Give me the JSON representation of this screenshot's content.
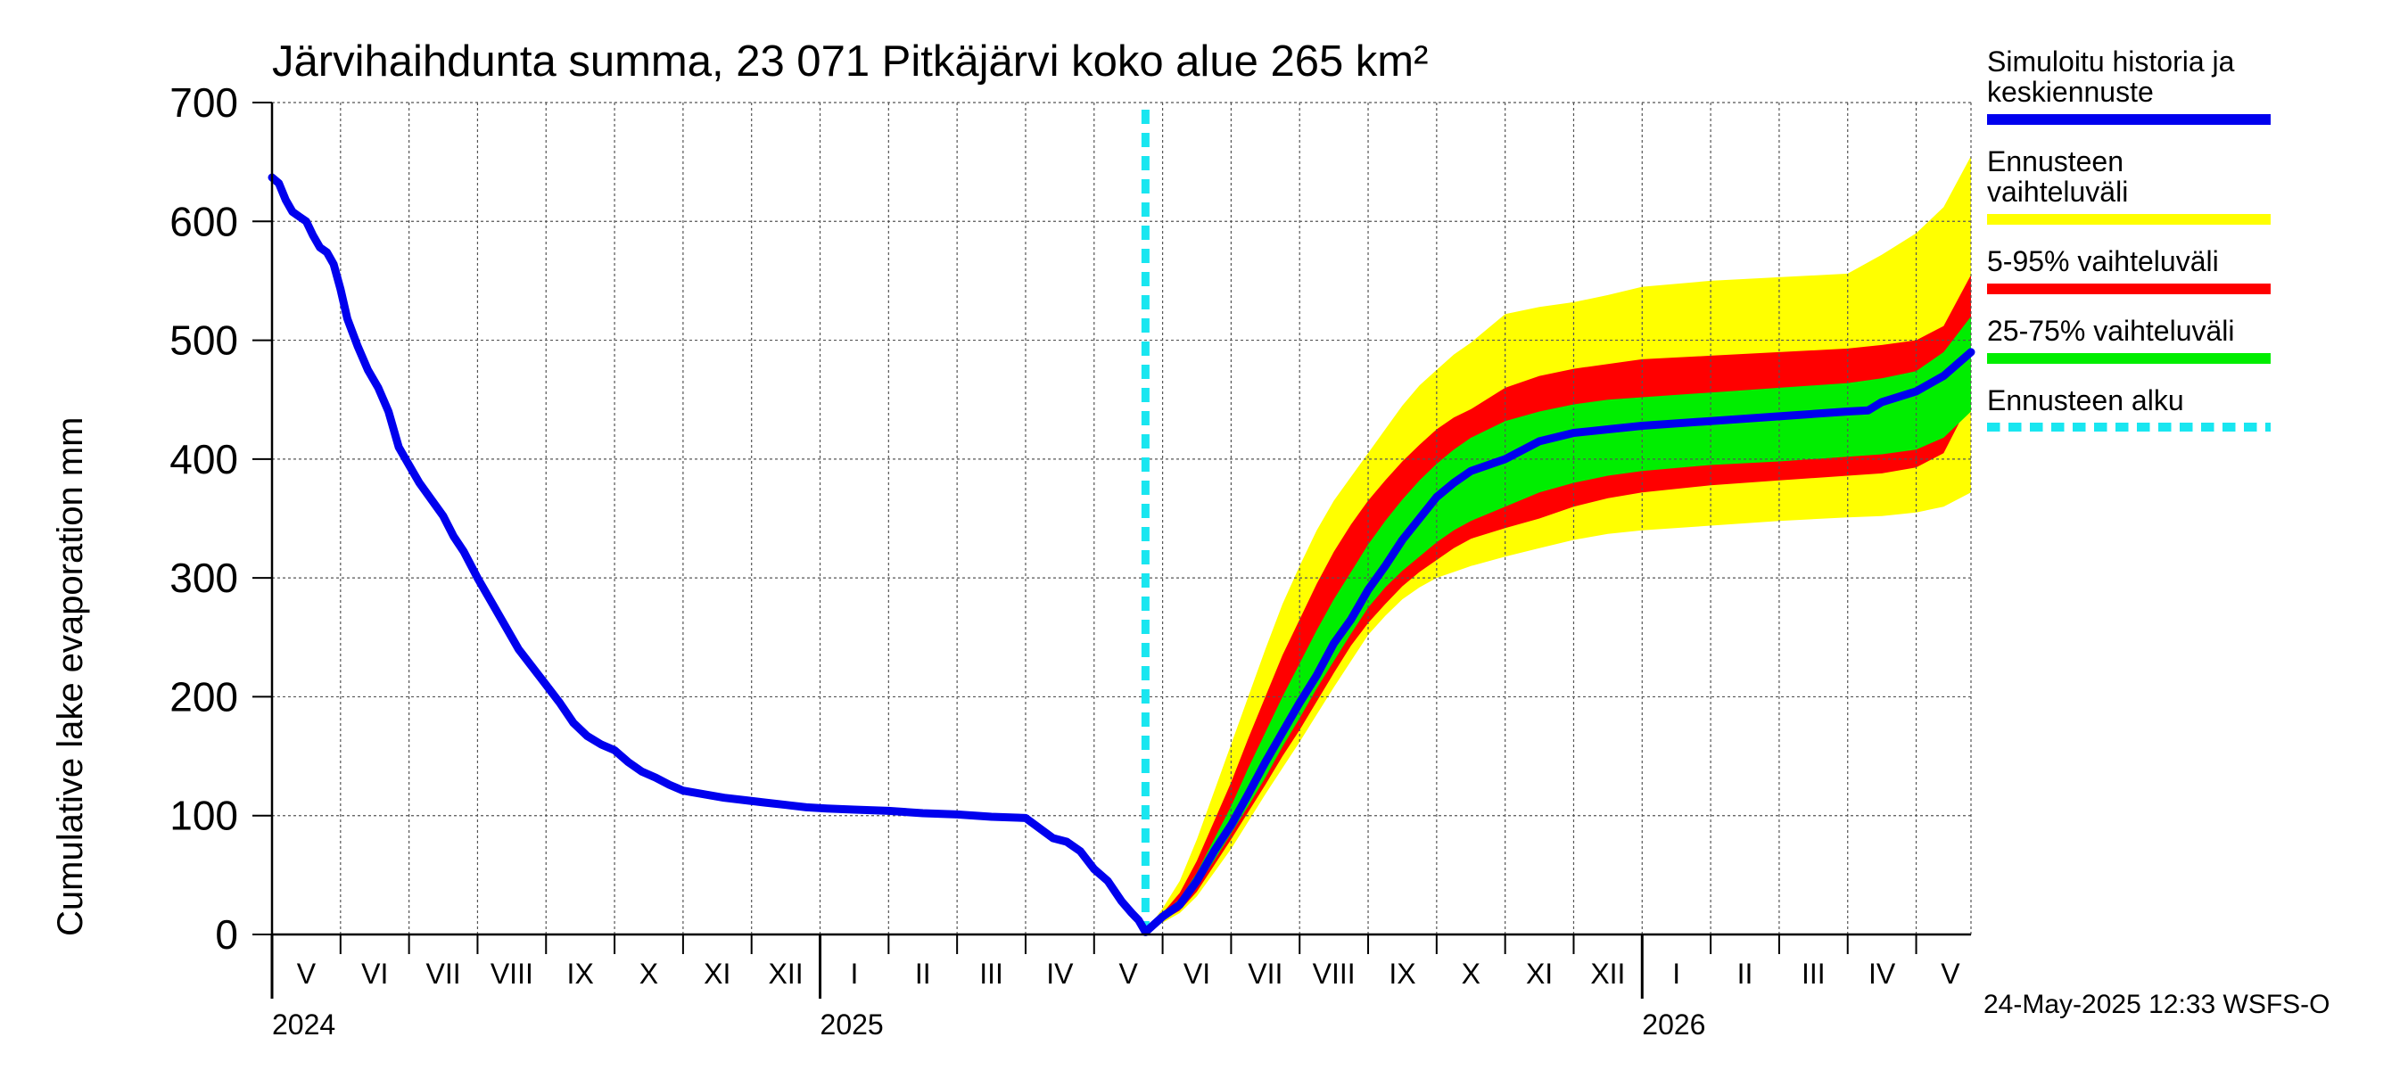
{
  "chart_data": {
    "type": "line",
    "title": "Järvihaihdunta summa, 23 071 Pitkäjärvi koko alue 265 km²",
    "ylabel": "Cumulative lake evaporation   mm",
    "xlabel": "",
    "ylim": [
      0,
      700
    ],
    "y_ticks": [
      0,
      100,
      200,
      300,
      400,
      500,
      600,
      700
    ],
    "grid": true,
    "x_unit": "months since 2024-05-01",
    "xlim": [
      0,
      24.8
    ],
    "month_labels": [
      "V",
      "VI",
      "VII",
      "VIII",
      "IX",
      "X",
      "XI",
      "XII",
      "I",
      "II",
      "III",
      "IV",
      "V",
      "VI",
      "VII",
      "VIII",
      "IX",
      "X",
      "XI",
      "XII",
      "I",
      "II",
      "III",
      "IV",
      "V"
    ],
    "year_labels": [
      {
        "label": "2024",
        "month_index": 0
      },
      {
        "label": "2025",
        "month_index": 8
      },
      {
        "label": "2026",
        "month_index": 20
      }
    ],
    "forecast_start": 12.75,
    "history": {
      "name": "Simuloitu historia ja keskiennuste",
      "x": [
        0.0,
        0.1,
        0.2,
        0.3,
        0.4,
        0.5,
        0.6,
        0.7,
        0.8,
        0.9,
        1.0,
        1.1,
        1.25,
        1.4,
        1.55,
        1.7,
        1.85,
        2.0,
        2.15,
        2.3,
        2.5,
        2.65,
        2.8,
        3.0,
        3.2,
        3.4,
        3.6,
        3.8,
        4.0,
        4.2,
        4.4,
        4.6,
        4.8,
        5.0,
        5.2,
        5.4,
        5.6,
        5.8,
        6.0,
        6.3,
        6.6,
        6.9,
        7.2,
        7.5,
        7.8,
        8.1,
        8.5,
        9.0,
        9.5,
        10.0,
        10.5,
        11.0,
        11.4,
        11.6,
        11.8,
        12.0,
        12.2,
        12.4,
        12.55,
        12.65,
        12.75
      ],
      "y": [
        637,
        632,
        618,
        608,
        604,
        600,
        588,
        578,
        574,
        564,
        543,
        518,
        495,
        475,
        460,
        440,
        410,
        395,
        380,
        368,
        352,
        335,
        322,
        300,
        280,
        260,
        240,
        225,
        210,
        195,
        178,
        167,
        160,
        155,
        145,
        137,
        132,
        126,
        121,
        118,
        115,
        113,
        111,
        109,
        107,
        106,
        105,
        104,
        102,
        101,
        99,
        98,
        81,
        78,
        70,
        55,
        45,
        28,
        18,
        12,
        2
      ]
    },
    "median_forecast": {
      "name": "Simuloitu historia ja keskiennuste",
      "x": [
        12.75,
        13.0,
        13.25,
        13.5,
        13.75,
        14.0,
        14.25,
        14.5,
        14.75,
        15.0,
        15.25,
        15.5,
        15.75,
        16.0,
        16.25,
        16.5,
        16.75,
        17.0,
        17.25,
        17.5,
        18.0,
        18.5,
        19.0,
        19.5,
        20.0,
        21.0,
        22.0,
        23.0,
        23.3,
        23.5,
        24.0,
        24.4,
        24.8
      ],
      "y": [
        2,
        15,
        25,
        45,
        70,
        92,
        118,
        145,
        170,
        195,
        218,
        245,
        265,
        290,
        310,
        332,
        350,
        368,
        380,
        390,
        400,
        415,
        422,
        425,
        428,
        432,
        436,
        440,
        441,
        448,
        457,
        470,
        490
      ]
    },
    "bands": [
      {
        "name": "Ennusteen vaihteluväli",
        "color": "#ffff00",
        "x": [
          12.75,
          13.0,
          13.25,
          13.5,
          13.75,
          14.0,
          14.25,
          14.5,
          14.75,
          15.0,
          15.25,
          15.5,
          15.75,
          16.0,
          16.25,
          16.5,
          16.75,
          17.0,
          17.25,
          17.5,
          18.0,
          18.5,
          19.0,
          19.5,
          20.0,
          21.0,
          22.0,
          23.0,
          23.5,
          24.0,
          24.4,
          24.8
        ],
        "upper": [
          2,
          22,
          45,
          80,
          120,
          160,
          200,
          240,
          278,
          310,
          340,
          365,
          385,
          405,
          425,
          445,
          462,
          475,
          488,
          498,
          522,
          528,
          532,
          538,
          545,
          550,
          553,
          556,
          572,
          590,
          612,
          655
        ],
        "lower": [
          2,
          10,
          18,
          32,
          52,
          72,
          95,
          118,
          140,
          162,
          185,
          208,
          230,
          252,
          268,
          282,
          292,
          300,
          305,
          310,
          318,
          325,
          332,
          337,
          340,
          344,
          348,
          351,
          352,
          355,
          360,
          372
        ]
      },
      {
        "name": "5-95% vaihteluväli",
        "color": "#ff0000",
        "x": [
          12.75,
          13.0,
          13.25,
          13.5,
          13.75,
          14.0,
          14.25,
          14.5,
          14.75,
          15.0,
          15.25,
          15.5,
          15.75,
          16.0,
          16.25,
          16.5,
          16.75,
          17.0,
          17.25,
          17.5,
          18.0,
          18.5,
          19.0,
          19.5,
          20.0,
          21.0,
          22.0,
          23.0,
          23.5,
          24.0,
          24.4,
          24.8
        ],
        "upper": [
          2,
          18,
          35,
          62,
          95,
          128,
          165,
          200,
          235,
          265,
          295,
          322,
          345,
          365,
          382,
          398,
          412,
          425,
          435,
          442,
          460,
          470,
          476,
          480,
          484,
          487,
          490,
          493,
          496,
          500,
          512,
          555
        ],
        "lower": [
          2,
          12,
          20,
          36,
          58,
          80,
          103,
          126,
          150,
          172,
          196,
          220,
          243,
          262,
          278,
          293,
          305,
          315,
          325,
          333,
          342,
          350,
          360,
          367,
          372,
          378,
          382,
          386,
          388,
          393,
          405,
          450
        ]
      },
      {
        "name": "25-75% vaihteluväli",
        "color": "#00ee00",
        "x": [
          12.75,
          13.0,
          13.25,
          13.5,
          13.75,
          14.0,
          14.25,
          14.5,
          14.75,
          15.0,
          15.25,
          15.5,
          15.75,
          16.0,
          16.25,
          16.5,
          16.75,
          17.0,
          17.25,
          17.5,
          18.0,
          18.5,
          19.0,
          19.5,
          20.0,
          21.0,
          22.0,
          23.0,
          23.5,
          24.0,
          24.4,
          24.8
        ],
        "upper": [
          2,
          17,
          30,
          52,
          80,
          108,
          140,
          170,
          200,
          228,
          256,
          282,
          305,
          328,
          348,
          366,
          382,
          396,
          408,
          418,
          432,
          440,
          446,
          450,
          452,
          456,
          460,
          464,
          468,
          474,
          490,
          520
        ],
        "lower": [
          2,
          13,
          22,
          40,
          62,
          85,
          108,
          132,
          158,
          182,
          207,
          230,
          253,
          275,
          292,
          306,
          318,
          330,
          340,
          348,
          360,
          372,
          380,
          386,
          390,
          395,
          398,
          402,
          404,
          408,
          418,
          440
        ]
      }
    ],
    "legend": [
      {
        "label": "Simuloitu historia ja keskiennuste",
        "color": "#0000ee",
        "style": "line"
      },
      {
        "label": "Ennusteen vaihteluväli",
        "color": "#ffff00",
        "style": "band"
      },
      {
        "label": "5-95% vaihteluväli",
        "color": "#ff0000",
        "style": "band"
      },
      {
        "label": "25-75% vaihteluväli",
        "color": "#00ee00",
        "style": "band"
      },
      {
        "label": "Ennusteen alku",
        "color": "#19e6f0",
        "style": "dashed"
      }
    ],
    "legend_position": "right"
  },
  "footer": {
    "timestamp": "24-May-2025 12:33 WSFS-O"
  }
}
